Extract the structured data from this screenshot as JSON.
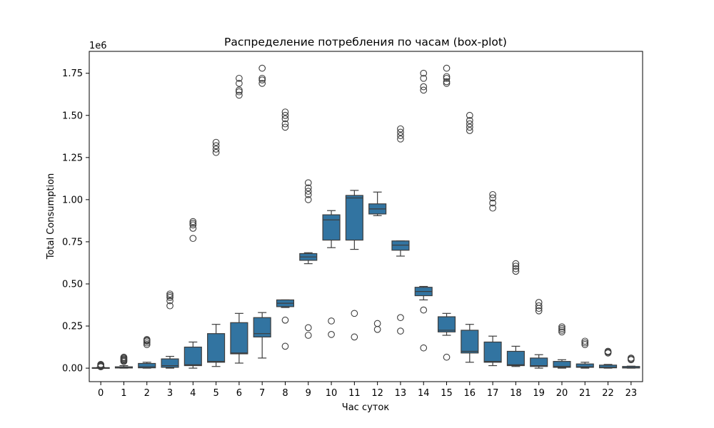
{
  "chart_data": {
    "type": "box",
    "title": "Распределение потребления по часам (box-plot)",
    "xlabel": "Час суток",
    "ylabel": "Total Consumption",
    "y_offset_label": "1e6",
    "y_multiplier": 1000000,
    "ylim": [
      -80000,
      1880000
    ],
    "y_ticks": [
      0,
      250000,
      500000,
      750000,
      1000000,
      1250000,
      1500000,
      1750000
    ],
    "y_tick_labels": [
      "0.00",
      "0.25",
      "0.50",
      "0.75",
      "1.00",
      "1.25",
      "1.50",
      "1.75"
    ],
    "categories": [
      "0",
      "1",
      "2",
      "3",
      "4",
      "5",
      "6",
      "7",
      "8",
      "9",
      "10",
      "11",
      "12",
      "13",
      "14",
      "15",
      "16",
      "17",
      "18",
      "19",
      "20",
      "21",
      "22",
      "23"
    ],
    "box_color": "#3274a1",
    "grid": false,
    "boxes": [
      {
        "hour": "0",
        "whislo": 0,
        "q1": 0,
        "med": 2000,
        "q3": 3000,
        "whishi": 5000,
        "fliers": [
          8000,
          12000,
          15000,
          18000,
          22000
        ]
      },
      {
        "hour": "1",
        "whislo": 0,
        "q1": 1000,
        "med": 3000,
        "q3": 8000,
        "whishi": 15000,
        "fliers": [
          40000,
          45000,
          50000,
          55000,
          60000,
          65000
        ]
      },
      {
        "hour": "2",
        "whislo": 0,
        "q1": 2000,
        "med": 8000,
        "q3": 28000,
        "whishi": 35000,
        "fliers": [
          140000,
          150000,
          160000,
          165000,
          170000
        ]
      },
      {
        "hour": "3",
        "whislo": 0,
        "q1": 5000,
        "med": 15000,
        "q3": 55000,
        "whishi": 70000,
        "fliers": [
          370000,
          400000,
          420000,
          430000,
          440000
        ]
      },
      {
        "hour": "4",
        "whislo": 0,
        "q1": 15000,
        "med": 20000,
        "q3": 125000,
        "whishi": 155000,
        "fliers": [
          770000,
          830000,
          850000,
          860000,
          870000
        ]
      },
      {
        "hour": "5",
        "whislo": 10000,
        "q1": 35000,
        "med": 40000,
        "q3": 205000,
        "whishi": 260000,
        "fliers": [
          1280000,
          1300000,
          1320000,
          1340000
        ]
      },
      {
        "hour": "6",
        "whislo": 30000,
        "q1": 85000,
        "med": 90000,
        "q3": 270000,
        "whishi": 325000,
        "fliers": [
          1620000,
          1640000,
          1650000,
          1690000,
          1720000
        ]
      },
      {
        "hour": "7",
        "whislo": 60000,
        "q1": 185000,
        "med": 205000,
        "q3": 300000,
        "whishi": 330000,
        "fliers": [
          1690000,
          1710000,
          1720000,
          1780000
        ]
      },
      {
        "hour": "8",
        "whislo": 360000,
        "q1": 365000,
        "med": 385000,
        "q3": 405000,
        "whishi": 405000,
        "fliers": [
          130000,
          285000,
          1430000,
          1450000,
          1480000,
          1500000,
          1520000
        ]
      },
      {
        "hour": "9",
        "whislo": 620000,
        "q1": 640000,
        "med": 660000,
        "q3": 680000,
        "whishi": 685000,
        "fliers": [
          195000,
          240000,
          1000000,
          1030000,
          1050000,
          1070000,
          1100000
        ]
      },
      {
        "hour": "10",
        "whislo": 715000,
        "q1": 760000,
        "med": 880000,
        "q3": 910000,
        "whishi": 935000,
        "fliers": [
          200000,
          280000
        ]
      },
      {
        "hour": "11",
        "whislo": 705000,
        "q1": 760000,
        "med": 1010000,
        "q3": 1025000,
        "whishi": 1055000,
        "fliers": [
          185000,
          325000
        ]
      },
      {
        "hour": "12",
        "whislo": 905000,
        "q1": 915000,
        "med": 945000,
        "q3": 975000,
        "whishi": 1045000,
        "fliers": [
          230000,
          265000
        ]
      },
      {
        "hour": "13",
        "whislo": 665000,
        "q1": 700000,
        "med": 730000,
        "q3": 755000,
        "whishi": 755000,
        "fliers": [
          220000,
          300000,
          1360000,
          1380000,
          1400000,
          1420000
        ]
      },
      {
        "hour": "14",
        "whislo": 405000,
        "q1": 430000,
        "med": 455000,
        "q3": 480000,
        "whishi": 485000,
        "fliers": [
          120000,
          345000,
          1650000,
          1670000,
          1720000,
          1750000
        ]
      },
      {
        "hour": "15",
        "whislo": 195000,
        "q1": 215000,
        "med": 225000,
        "q3": 305000,
        "whishi": 325000,
        "fliers": [
          65000,
          1690000,
          1700000,
          1720000,
          1730000,
          1780000
        ]
      },
      {
        "hour": "16",
        "whislo": 35000,
        "q1": 90000,
        "med": 100000,
        "q3": 225000,
        "whishi": 260000,
        "fliers": [
          1410000,
          1430000,
          1450000,
          1470000,
          1500000
        ]
      },
      {
        "hour": "17",
        "whislo": 15000,
        "q1": 35000,
        "med": 40000,
        "q3": 155000,
        "whishi": 190000,
        "fliers": [
          950000,
          980000,
          1010000,
          1030000
        ]
      },
      {
        "hour": "18",
        "whislo": 10000,
        "q1": 15000,
        "med": 20000,
        "q3": 100000,
        "whishi": 130000,
        "fliers": [
          575000,
          590000,
          605000,
          620000
        ]
      },
      {
        "hour": "19",
        "whislo": 0,
        "q1": 10000,
        "med": 15000,
        "q3": 60000,
        "whishi": 80000,
        "fliers": [
          340000,
          355000,
          370000,
          390000
        ]
      },
      {
        "hour": "20",
        "whislo": 0,
        "q1": 5000,
        "med": 10000,
        "q3": 40000,
        "whishi": 50000,
        "fliers": [
          215000,
          225000,
          235000,
          245000
        ]
      },
      {
        "hour": "21",
        "whislo": 0,
        "q1": 5000,
        "med": 8000,
        "q3": 25000,
        "whishi": 35000,
        "fliers": [
          140000,
          150000,
          160000
        ]
      },
      {
        "hour": "22",
        "whislo": 0,
        "q1": 2000,
        "med": 5000,
        "q3": 18000,
        "whishi": 22000,
        "fliers": [
          90000,
          95000,
          100000
        ]
      },
      {
        "hour": "23",
        "whislo": 0,
        "q1": 1000,
        "med": 3000,
        "q3": 10000,
        "whishi": 12000,
        "fliers": [
          50000,
          55000,
          60000
        ]
      }
    ]
  }
}
